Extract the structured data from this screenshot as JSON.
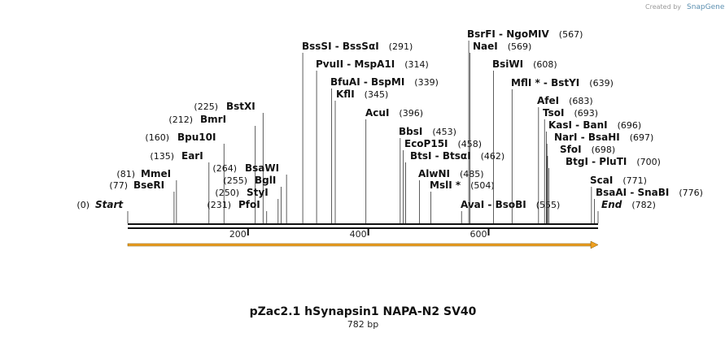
{
  "map": {
    "title": "pZac2.1 hSynapsin1 NAPA-N2 SV40",
    "length_label": "782 bp",
    "length_bp": 782,
    "brand_text": "Created by",
    "brand_name": "SnapGene",
    "ticks": [
      {
        "bp": 200,
        "label": "200"
      },
      {
        "bp": 400,
        "label": "400"
      },
      {
        "bp": 600,
        "label": "600"
      }
    ],
    "feature_color": "#f0a020",
    "backbone_color": "#111111"
  },
  "enzymes": [
    {
      "name": "Start",
      "pos_text": "(0)",
      "bp": 0,
      "side": "right",
      "italic": true
    },
    {
      "name": "BseRI",
      "pos_text": "(77)",
      "bp": 77,
      "side": "right"
    },
    {
      "name": "MmeI",
      "pos_text": "(81)",
      "bp": 81,
      "side": "right"
    },
    {
      "name": "EarI",
      "pos_text": "(135)",
      "bp": 135,
      "side": "right"
    },
    {
      "name": "Bpu10I",
      "pos_text": "(160)",
      "bp": 160,
      "side": "right"
    },
    {
      "name": "BmrI",
      "pos_text": "(212)",
      "bp": 212,
      "side": "right"
    },
    {
      "name": "BstXI",
      "pos_text": "(225)",
      "bp": 225,
      "side": "right"
    },
    {
      "name": "PfoI",
      "pos_text": "(231)",
      "bp": 231,
      "side": "right"
    },
    {
      "name": "StyI",
      "pos_text": "(250)",
      "bp": 250,
      "side": "right"
    },
    {
      "name": "BglI",
      "pos_text": "(255)",
      "bp": 255,
      "side": "right"
    },
    {
      "name": "BsaWI",
      "pos_text": "(264)",
      "bp": 264,
      "side": "right"
    },
    {
      "name": "BssSI  -  BssSαI",
      "pos_text": "(291)",
      "bp": 291,
      "side": "left"
    },
    {
      "name": "PvuII  -  MspA1I",
      "pos_text": "(314)",
      "bp": 314,
      "side": "left"
    },
    {
      "name": "BfuAI  -  BspMI",
      "pos_text": "(339)",
      "bp": 339,
      "side": "left"
    },
    {
      "name": "KflI",
      "pos_text": "(345)",
      "bp": 345,
      "side": "left"
    },
    {
      "name": "AcuI",
      "pos_text": "(396)",
      "bp": 396,
      "side": "left"
    },
    {
      "name": "BbsI",
      "pos_text": "(453)",
      "bp": 453,
      "side": "left"
    },
    {
      "name": "EcoP15I",
      "pos_text": "(458)",
      "bp": 458,
      "side": "left"
    },
    {
      "name": "BtsI  -  BtsαI",
      "pos_text": "(462)",
      "bp": 462,
      "side": "left"
    },
    {
      "name": "AlwNI",
      "pos_text": "(485)",
      "bp": 485,
      "side": "left"
    },
    {
      "name": "MslI *",
      "pos_text": "(504)",
      "bp": 504,
      "side": "left"
    },
    {
      "name": "AvaI   -  BsoBI",
      "pos_text": "(555)",
      "bp": 555,
      "side": "left"
    },
    {
      "name": "BsrFI  -  NgoMIV",
      "pos_text": "(567)",
      "bp": 567,
      "side": "left"
    },
    {
      "name": "NaeI",
      "pos_text": "(569)",
      "bp": 569,
      "side": "left"
    },
    {
      "name": "BsiWI",
      "pos_text": "(608)",
      "bp": 608,
      "side": "left"
    },
    {
      "name": "MflI *  -  BstYI",
      "pos_text": "(639)",
      "bp": 639,
      "side": "left"
    },
    {
      "name": "AfeI",
      "pos_text": "(683)",
      "bp": 683,
      "side": "left"
    },
    {
      "name": "TsoI",
      "pos_text": "(693)",
      "bp": 693,
      "side": "left"
    },
    {
      "name": "KasI  -  BanI",
      "pos_text": "(696)",
      "bp": 696,
      "side": "left"
    },
    {
      "name": "NarI  -  BsaHI",
      "pos_text": "(697)",
      "bp": 697,
      "side": "left"
    },
    {
      "name": "SfoI",
      "pos_text": "(698)",
      "bp": 698,
      "side": "left"
    },
    {
      "name": "BtgI  -  PluTI",
      "pos_text": "(700)",
      "bp": 700,
      "side": "left"
    },
    {
      "name": "ScaI",
      "pos_text": "(771)",
      "bp": 771,
      "side": "left"
    },
    {
      "name": "BsaAI  -  SnaBI",
      "pos_text": "(776)",
      "bp": 776,
      "side": "left"
    },
    {
      "name": "End",
      "pos_text": "(782)",
      "bp": 782,
      "side": "left",
      "italic": true
    }
  ]
}
